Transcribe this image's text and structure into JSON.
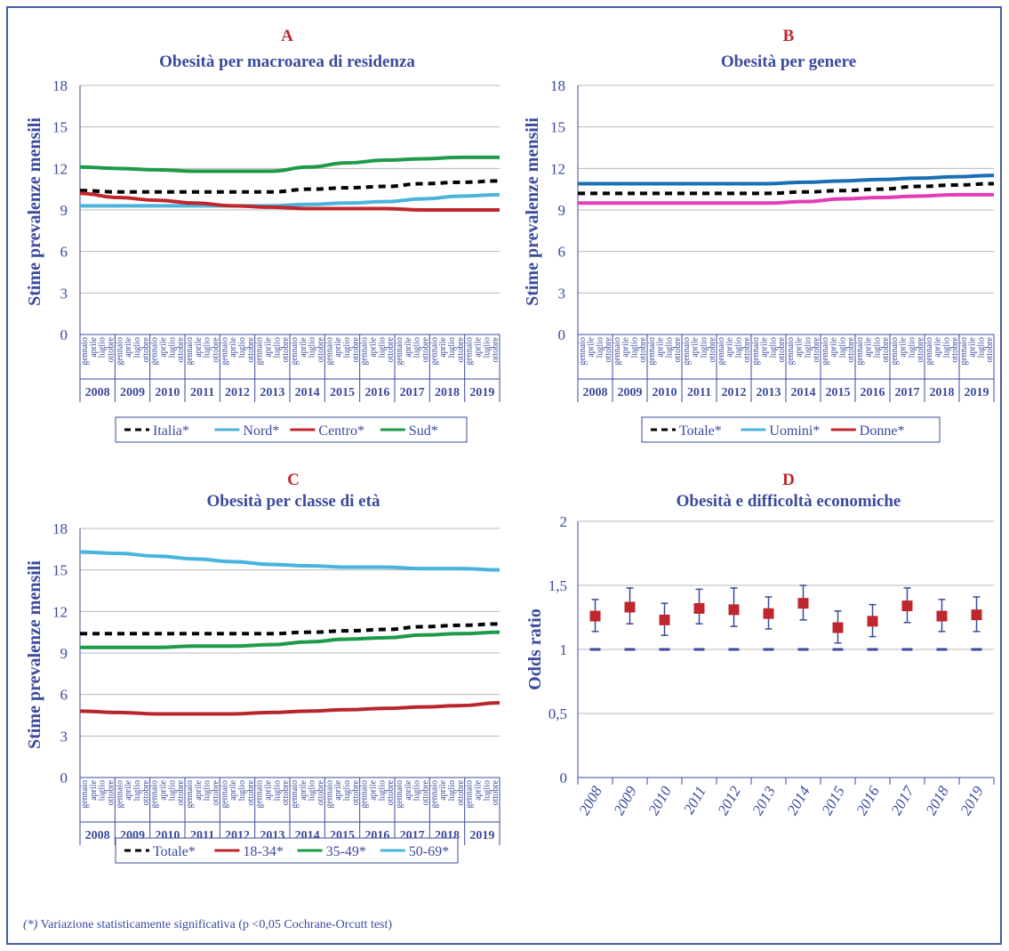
{
  "footnote": {
    "marker": "(*)",
    "text": " Variazione statisticamente significativa (p <0,05 Cochrane-Orcutt test)"
  },
  "colors": {
    "axis_text": "#3b4a9c",
    "panel_letter": "#c0272d",
    "grid": "#b8b8b8",
    "black": "#000000",
    "nord": "#4bb4dc",
    "centro": "#c0272d",
    "sud": "#1e9a4a",
    "uomini": "#1a6eb5",
    "donne": "#e33db6",
    "anziani": "#49b3df",
    "giovani": "#b8262c",
    "medi": "#1e9a4a",
    "marker": "#c0272d",
    "errorbar": "#3b4a9c"
  },
  "chart_data": [
    {
      "id": "A",
      "type": "line",
      "letter": "A",
      "title": "Obesità per macroarea di residenza",
      "ylabel": "Stime prevalenze mensili",
      "ylim": [
        0,
        18
      ],
      "yticks": [
        0,
        3,
        6,
        9,
        12,
        15,
        18
      ],
      "grid": true,
      "legend_position": "bottom",
      "month_labels": [
        "gennaio",
        "aprile",
        "luglio",
        "ottobre"
      ],
      "years": [
        "2008",
        "2009",
        "2010",
        "2011",
        "2012",
        "2013",
        "2014",
        "2015",
        "2016",
        "2017",
        "2018",
        "2019"
      ],
      "series": [
        {
          "name": "Italia*",
          "color": "#000000",
          "dashed": true,
          "values": [
            10.4,
            10.3,
            10.3,
            10.3,
            10.3,
            10.3,
            10.5,
            10.6,
            10.7,
            10.9,
            11.0,
            11.1
          ]
        },
        {
          "name": "Nord*",
          "color": "#4bb4dc",
          "dashed": false,
          "values": [
            9.3,
            9.3,
            9.3,
            9.3,
            9.3,
            9.3,
            9.4,
            9.5,
            9.6,
            9.8,
            10.0,
            10.1
          ]
        },
        {
          "name": "Centro*",
          "color": "#c0272d",
          "dashed": false,
          "values": [
            10.2,
            9.9,
            9.7,
            9.5,
            9.3,
            9.2,
            9.1,
            9.1,
            9.1,
            9.0,
            9.0,
            9.0
          ]
        },
        {
          "name": "Sud*",
          "color": "#1e9a4a",
          "dashed": false,
          "values": [
            12.1,
            12.0,
            11.9,
            11.8,
            11.8,
            11.8,
            12.1,
            12.4,
            12.6,
            12.7,
            12.8,
            12.8
          ]
        }
      ]
    },
    {
      "id": "B",
      "type": "line",
      "letter": "B",
      "title": "Obesità per genere",
      "ylabel": "Stime prevalenze mensili",
      "ylim": [
        0,
        18
      ],
      "yticks": [
        0,
        3,
        6,
        9,
        12,
        15,
        18
      ],
      "grid": true,
      "legend_position": "bottom",
      "month_labels": [
        "gennaio",
        "aprile",
        "luglio",
        "ottobre"
      ],
      "years": [
        "2008",
        "2009",
        "2010",
        "2011",
        "2012",
        "2013",
        "2014",
        "2015",
        "2016",
        "2017",
        "2018",
        "2019"
      ],
      "series": [
        {
          "name": "Totale*",
          "color": "#000000",
          "dashed": true,
          "values": [
            10.2,
            10.2,
            10.2,
            10.2,
            10.2,
            10.2,
            10.3,
            10.4,
            10.5,
            10.7,
            10.8,
            10.9
          ]
        },
        {
          "name": "Uomini*",
          "color": "#1a6eb5",
          "legend_color": "#4bb4dc",
          "dashed": false,
          "values": [
            10.9,
            10.9,
            10.9,
            10.9,
            10.9,
            10.9,
            11.0,
            11.1,
            11.2,
            11.3,
            11.4,
            11.5
          ]
        },
        {
          "name": "Donne*",
          "color": "#e33db6",
          "legend_color": "#c0272d",
          "dashed": false,
          "values": [
            9.5,
            9.5,
            9.5,
            9.5,
            9.5,
            9.5,
            9.6,
            9.8,
            9.9,
            10.0,
            10.1,
            10.1
          ]
        }
      ]
    },
    {
      "id": "C",
      "type": "line",
      "letter": "C",
      "title": "Obesità per classe di età",
      "ylabel": "Stime prevalenze mensili",
      "ylim": [
        0,
        18
      ],
      "yticks": [
        0,
        3,
        6,
        9,
        12,
        15,
        18
      ],
      "grid": true,
      "legend_position": "bottom",
      "month_labels": [
        "gennaio",
        "aprile",
        "luglio",
        "ottobre"
      ],
      "years": [
        "2008",
        "2009",
        "2010",
        "2011",
        "2012",
        "2013",
        "2014",
        "2015",
        "2016",
        "2017",
        "2018",
        "2019"
      ],
      "series": [
        {
          "name": "Totale*",
          "color": "#000000",
          "dashed": true,
          "values": [
            10.4,
            10.4,
            10.4,
            10.4,
            10.4,
            10.4,
            10.5,
            10.6,
            10.7,
            10.9,
            11.0,
            11.1
          ]
        },
        {
          "name": "18-34*",
          "color": "#b8262c",
          "dashed": false,
          "values": [
            4.8,
            4.7,
            4.6,
            4.6,
            4.6,
            4.7,
            4.8,
            4.9,
            5.0,
            5.1,
            5.2,
            5.4
          ]
        },
        {
          "name": "35-49*",
          "color": "#1e9a4a",
          "dashed": false,
          "values": [
            9.4,
            9.4,
            9.4,
            9.5,
            9.5,
            9.6,
            9.8,
            10.0,
            10.1,
            10.3,
            10.4,
            10.5
          ]
        },
        {
          "name": "50-69*",
          "color": "#49b3df",
          "dashed": false,
          "values": [
            16.3,
            16.2,
            16.0,
            15.8,
            15.6,
            15.4,
            15.3,
            15.2,
            15.2,
            15.1,
            15.1,
            15.0
          ]
        }
      ]
    },
    {
      "id": "D",
      "type": "scatter",
      "letter": "D",
      "title": "Obesità e difficoltà economiche",
      "ylabel": "Odds ratio",
      "ylim": [
        0,
        2
      ],
      "yticks": [
        0,
        0.5,
        1,
        1.5,
        2
      ],
      "ytick_labels": [
        "0",
        "0,5",
        "1",
        "1,5",
        "2"
      ],
      "grid": true,
      "categories": [
        "2008",
        "2009",
        "2010",
        "2011",
        "2012",
        "2013",
        "2014",
        "2015",
        "2016",
        "2017",
        "2018",
        "2019"
      ],
      "values": [
        1.26,
        1.33,
        1.23,
        1.32,
        1.31,
        1.28,
        1.36,
        1.17,
        1.22,
        1.34,
        1.26,
        1.27
      ],
      "ci_low": [
        1.14,
        1.2,
        1.11,
        1.2,
        1.18,
        1.16,
        1.23,
        1.05,
        1.1,
        1.21,
        1.14,
        1.14
      ],
      "ci_high": [
        1.39,
        1.48,
        1.36,
        1.47,
        1.48,
        1.41,
        1.5,
        1.3,
        1.35,
        1.48,
        1.39,
        1.41
      ],
      "reference": 1
    }
  ]
}
